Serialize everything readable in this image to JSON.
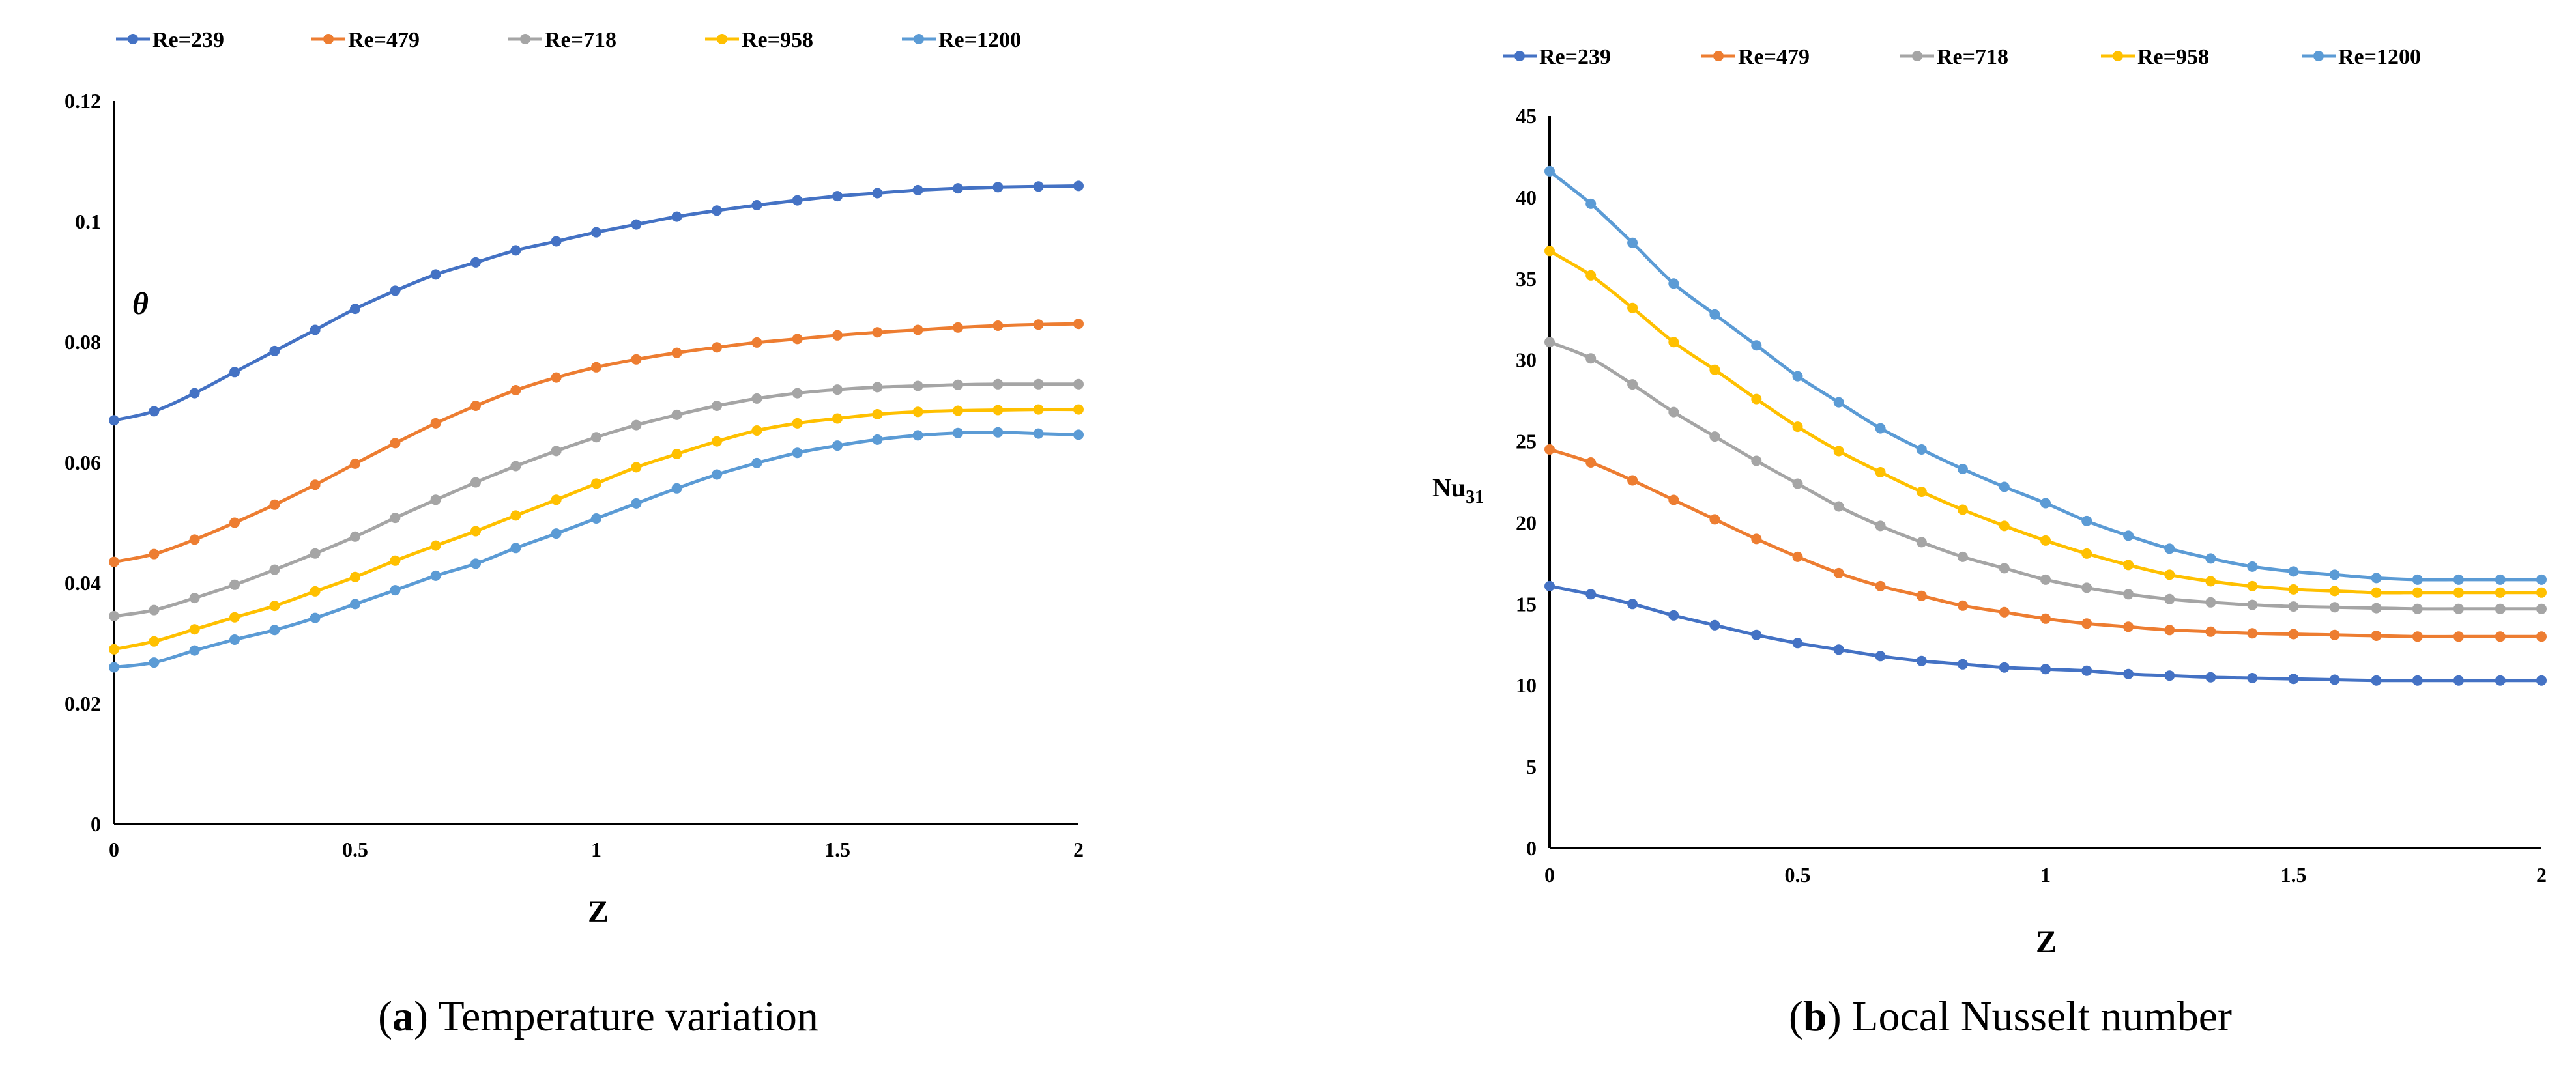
{
  "colors": [
    "#4472C4",
    "#ED7D31",
    "#A5A5A5",
    "#FFC000",
    "#5B9BD5"
  ],
  "chart_data": [
    {
      "type": "line",
      "title": "",
      "xlabel": "Z",
      "ylabel": "θ",
      "xlim": [
        0,
        2
      ],
      "ylim": [
        0,
        0.12
      ],
      "xticks": [
        "0",
        "0.5",
        "1",
        "1.5",
        "2"
      ],
      "yticks": [
        "0",
        "0.02",
        "0.04",
        "0.06",
        "0.08",
        "0.1",
        "0.12"
      ],
      "xtick_values": [
        0,
        0.5,
        1,
        1.5,
        2
      ],
      "ytick_values": [
        0,
        0.02,
        0.04,
        0.06,
        0.08,
        0.1,
        0.12
      ],
      "legend_position": "top",
      "x": [
        0,
        0.083,
        0.167,
        0.25,
        0.333,
        0.417,
        0.5,
        0.583,
        0.667,
        0.75,
        0.833,
        0.917,
        1.0,
        1.083,
        1.167,
        1.25,
        1.333,
        1.417,
        1.5,
        1.583,
        1.667,
        1.75,
        1.833,
        1.917,
        2.0
      ],
      "series": [
        {
          "name": "Re=239",
          "values": [
            0.067,
            0.0685,
            0.0715,
            0.075,
            0.0785,
            0.082,
            0.0855,
            0.0885,
            0.0912,
            0.0932,
            0.0952,
            0.0967,
            0.0982,
            0.0995,
            0.1008,
            0.1018,
            0.1027,
            0.1035,
            0.1042,
            0.1047,
            0.1052,
            0.1055,
            0.1057,
            0.1058,
            0.1059
          ]
        },
        {
          "name": "Re=479",
          "values": [
            0.0435,
            0.0448,
            0.0472,
            0.05,
            0.053,
            0.0563,
            0.0598,
            0.0632,
            0.0665,
            0.0694,
            0.072,
            0.0741,
            0.0758,
            0.0771,
            0.0782,
            0.0791,
            0.0799,
            0.0805,
            0.0811,
            0.0816,
            0.082,
            0.0824,
            0.0827,
            0.0829,
            0.083
          ]
        },
        {
          "name": "Re=718",
          "values": [
            0.0345,
            0.0355,
            0.0375,
            0.0397,
            0.0422,
            0.0449,
            0.0477,
            0.0508,
            0.0538,
            0.0567,
            0.0594,
            0.0619,
            0.0642,
            0.0662,
            0.0679,
            0.0694,
            0.0706,
            0.0715,
            0.0721,
            0.0725,
            0.0727,
            0.0729,
            0.073,
            0.073,
            0.073
          ]
        },
        {
          "name": "Re=958",
          "values": [
            0.029,
            0.0303,
            0.0323,
            0.0343,
            0.0362,
            0.0386,
            0.041,
            0.0437,
            0.0462,
            0.0486,
            0.0512,
            0.0538,
            0.0565,
            0.0592,
            0.0614,
            0.0635,
            0.0653,
            0.0665,
            0.0673,
            0.068,
            0.0684,
            0.0686,
            0.0687,
            0.0688,
            0.0688
          ]
        },
        {
          "name": "Re=1200",
          "values": [
            0.026,
            0.0268,
            0.0288,
            0.0306,
            0.0322,
            0.0342,
            0.0365,
            0.0388,
            0.0412,
            0.0432,
            0.0458,
            0.0482,
            0.0507,
            0.0532,
            0.0557,
            0.058,
            0.0599,
            0.0616,
            0.0628,
            0.0638,
            0.0645,
            0.0649,
            0.065,
            0.0648,
            0.0646
          ]
        }
      ]
    },
    {
      "type": "line",
      "title": "",
      "xlabel": "Z",
      "ylabel": "Nu",
      "ylabel_subscript": "31",
      "xlim": [
        0,
        2
      ],
      "ylim": [
        0,
        45
      ],
      "xticks": [
        "0",
        "0.5",
        "1",
        "1.5",
        "2"
      ],
      "yticks": [
        "0",
        "5",
        "10",
        "15",
        "20",
        "25",
        "30",
        "35",
        "40",
        "45"
      ],
      "xtick_values": [
        0,
        0.5,
        1,
        1.5,
        2
      ],
      "ytick_values": [
        0,
        5,
        10,
        15,
        20,
        25,
        30,
        35,
        40,
        45
      ],
      "legend_position": "top",
      "x": [
        0,
        0.083,
        0.167,
        0.25,
        0.333,
        0.417,
        0.5,
        0.583,
        0.667,
        0.75,
        0.833,
        0.917,
        1.0,
        1.083,
        1.167,
        1.25,
        1.333,
        1.417,
        1.5,
        1.583,
        1.667,
        1.75,
        1.833,
        1.917,
        2.0
      ],
      "series": [
        {
          "name": "Re=239",
          "values": [
            16.1,
            15.6,
            15.0,
            14.3,
            13.7,
            13.1,
            12.6,
            12.2,
            11.8,
            11.5,
            11.3,
            11.1,
            11.0,
            10.9,
            10.7,
            10.6,
            10.5,
            10.45,
            10.4,
            10.35,
            10.3,
            10.3,
            10.3,
            10.3,
            10.3
          ]
        },
        {
          "name": "Re=479",
          "values": [
            24.5,
            23.7,
            22.6,
            21.4,
            20.2,
            19.0,
            17.9,
            16.9,
            16.1,
            15.5,
            14.9,
            14.5,
            14.1,
            13.8,
            13.6,
            13.4,
            13.3,
            13.2,
            13.15,
            13.1,
            13.05,
            13.0,
            13.0,
            13.0,
            13.0
          ]
        },
        {
          "name": "Re=718",
          "values": [
            31.1,
            30.1,
            28.5,
            26.8,
            25.3,
            23.8,
            22.4,
            21.0,
            19.8,
            18.8,
            17.9,
            17.2,
            16.5,
            16.0,
            15.6,
            15.3,
            15.1,
            14.95,
            14.85,
            14.8,
            14.75,
            14.7,
            14.7,
            14.7,
            14.7
          ]
        },
        {
          "name": "Re=958",
          "values": [
            36.7,
            35.2,
            33.2,
            31.1,
            29.4,
            27.6,
            25.9,
            24.4,
            23.1,
            21.9,
            20.8,
            19.8,
            18.9,
            18.1,
            17.4,
            16.8,
            16.4,
            16.1,
            15.9,
            15.8,
            15.7,
            15.7,
            15.7,
            15.7,
            15.7
          ]
        },
        {
          "name": "Re=1200",
          "values": [
            41.6,
            39.6,
            37.2,
            34.7,
            32.8,
            30.9,
            29.0,
            27.4,
            25.8,
            24.5,
            23.3,
            22.2,
            21.2,
            20.1,
            19.2,
            18.4,
            17.8,
            17.3,
            17.0,
            16.8,
            16.6,
            16.5,
            16.5,
            16.5,
            16.5
          ]
        }
      ]
    }
  ],
  "captions": [
    {
      "bold": "a",
      "rest": ") Temperature variation"
    },
    {
      "bold": "b",
      "rest": ") Local Nusselt number"
    }
  ]
}
